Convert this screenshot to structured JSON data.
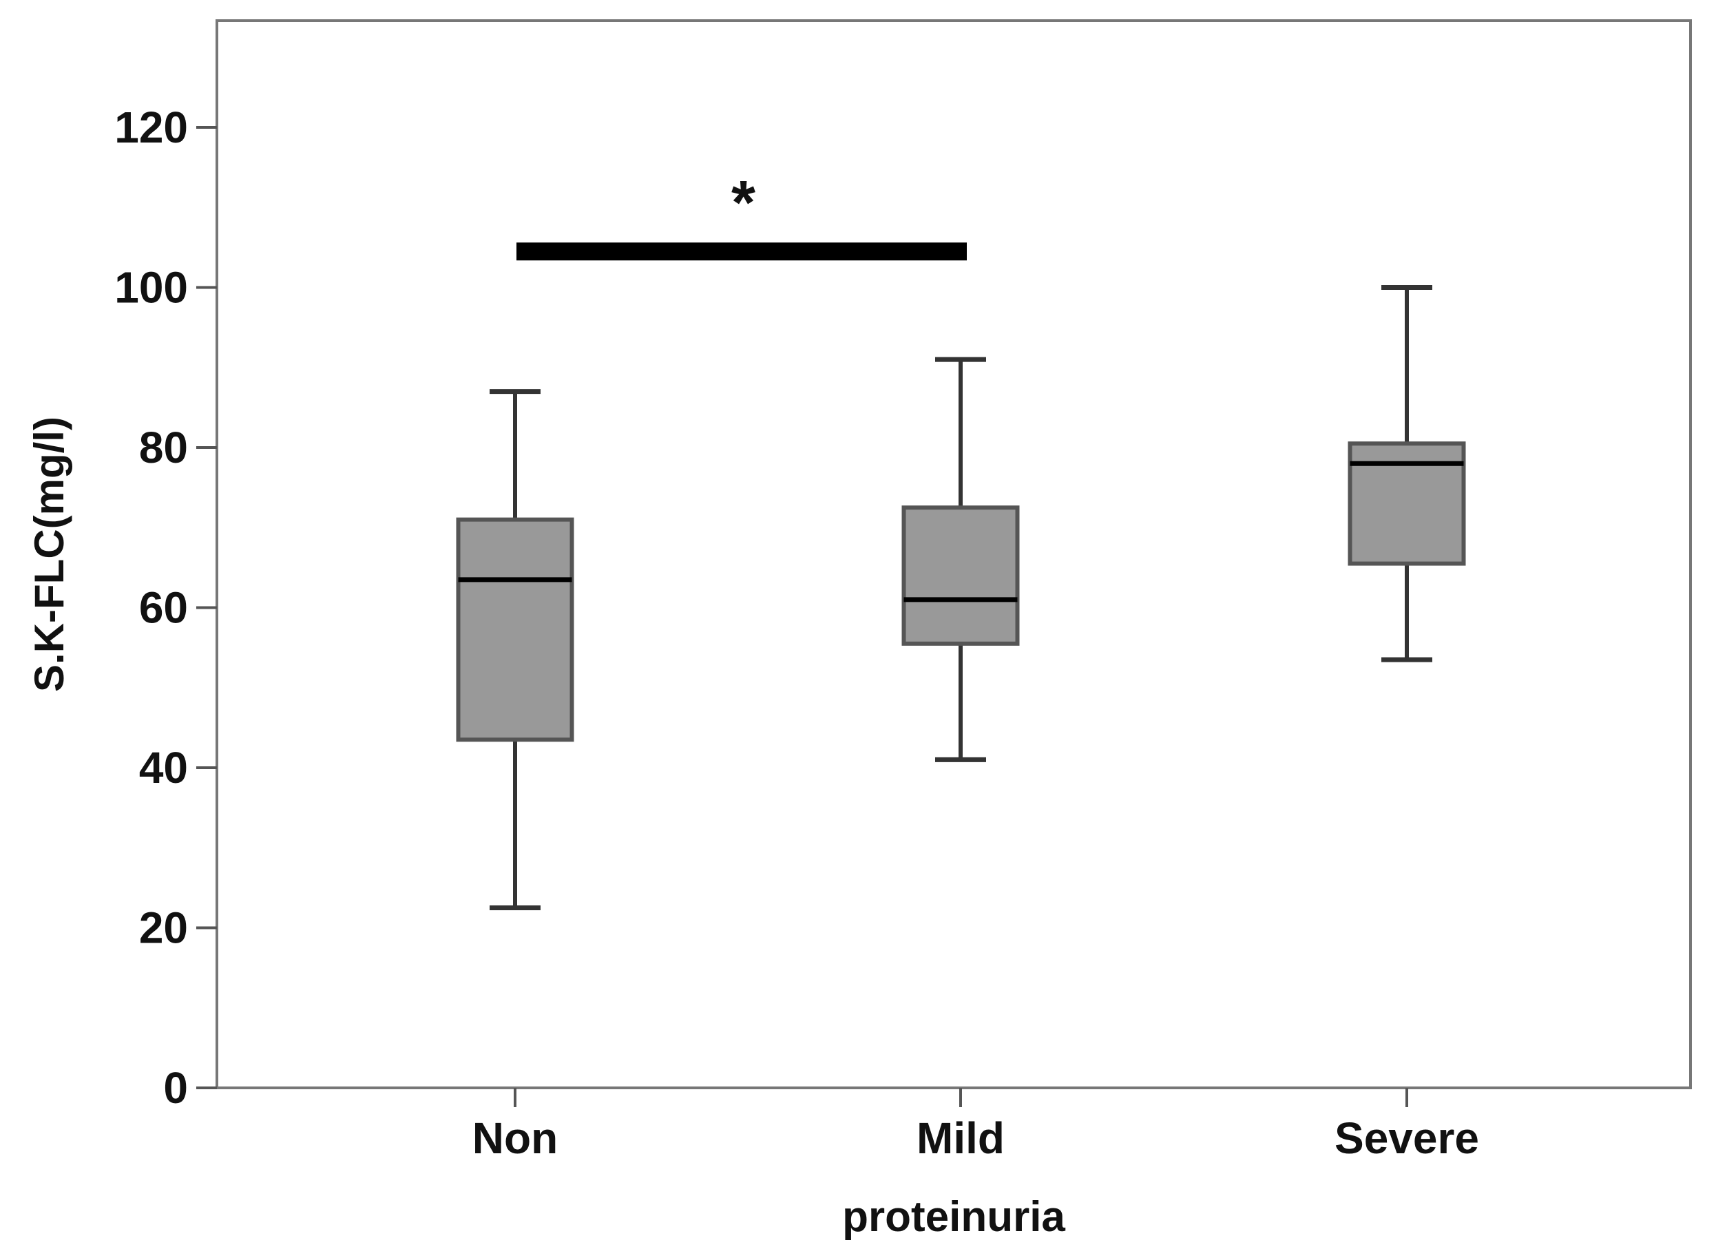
{
  "chart_data": {
    "type": "boxplot",
    "title": "",
    "xlabel": "proteinuria",
    "ylabel": "S.K-FLC(mg/l)",
    "ylim": [
      0,
      130
    ],
    "yticks": [
      0,
      20,
      40,
      60,
      80,
      100,
      120
    ],
    "ytick_labels": [
      "0",
      "20",
      "40",
      "60",
      "80",
      "100",
      "120"
    ],
    "categories": [
      "Non",
      "Mild",
      "Severe"
    ],
    "boxes": [
      {
        "name": "Non",
        "whisker_low": 22.5,
        "q1": 43.5,
        "median": 63.5,
        "q3": 71,
        "whisker_high": 87
      },
      {
        "name": "Mild",
        "whisker_low": 41,
        "q1": 55.5,
        "median": 61,
        "q3": 72.5,
        "whisker_high": 91
      },
      {
        "name": "Severe",
        "whisker_low": 53.5,
        "q1": 65.5,
        "median": 78,
        "q3": 80.5,
        "whisker_high": 100
      }
    ],
    "significance": {
      "from": "Non",
      "to": "Mild",
      "label": "*",
      "y": 104.5
    },
    "colors": {
      "box_fill": "#999999",
      "box_edge": "#555555",
      "median": "#000000",
      "whisker": "#333333",
      "frame": "#777777"
    }
  }
}
